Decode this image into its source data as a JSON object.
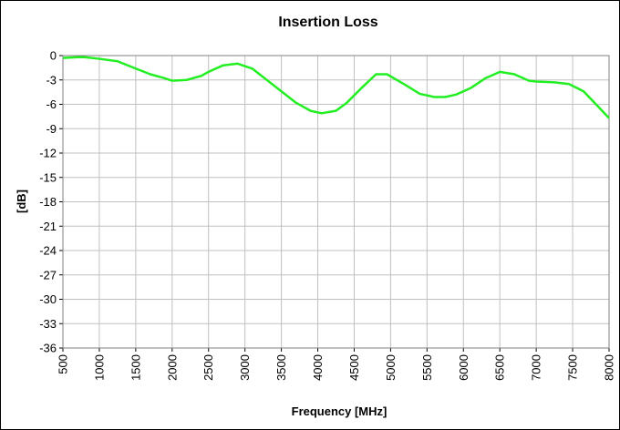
{
  "chart_data": {
    "type": "line",
    "title": "Insertion Loss",
    "x_label": "Frequency [MHz]",
    "y_label": "[dB]",
    "series": [
      {
        "name": "Insertion Loss",
        "color": "#22ee22",
        "x": [
          500,
          700,
          800,
          1000,
          1250,
          1500,
          1700,
          1900,
          2000,
          2200,
          2400,
          2500,
          2700,
          2900,
          3100,
          3500,
          3700,
          3900,
          4050,
          4250,
          4400,
          4600,
          4800,
          4950,
          5200,
          5400,
          5600,
          5750,
          5900,
          6100,
          6300,
          6500,
          6700,
          6900,
          7000,
          7250,
          7450,
          7650,
          7800,
          8000
        ],
        "values": [
          -0.3,
          -0.2,
          -0.2,
          -0.4,
          -0.7,
          -1.6,
          -2.3,
          -2.8,
          -3.1,
          -3.0,
          -2.5,
          -2.0,
          -1.2,
          -1.0,
          -1.6,
          -4.4,
          -5.8,
          -6.8,
          -7.1,
          -6.8,
          -5.8,
          -4.0,
          -2.3,
          -2.3,
          -3.6,
          -4.7,
          -5.1,
          -5.1,
          -4.8,
          -4.0,
          -2.8,
          -2.0,
          -2.3,
          -3.1,
          -3.2,
          -3.3,
          -3.5,
          -4.4,
          -5.8,
          -7.7
        ]
      }
    ],
    "xlim": [
      500,
      8000
    ],
    "xticks": [
      500,
      1000,
      1500,
      2000,
      2500,
      3000,
      3500,
      4000,
      4500,
      5000,
      5500,
      6000,
      6500,
      7000,
      7500,
      8000
    ],
    "ylim": [
      -36,
      0
    ],
    "yticks": [
      0,
      -3,
      -6,
      -9,
      -12,
      -15,
      -18,
      -21,
      -24,
      -27,
      -30,
      -33,
      -36
    ],
    "grid": true,
    "legend": false
  }
}
